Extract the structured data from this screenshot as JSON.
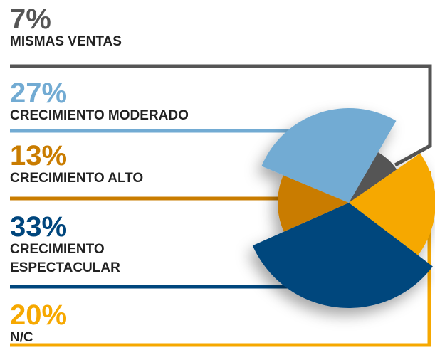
{
  "chart_data": {
    "type": "pie",
    "categories": [
      "MISMAS VENTAS",
      "CRECIMIENTO MODERADO",
      "CRECIMIENTO ALTO",
      "CRECIMIENTO ESPECTACULAR",
      "N/C"
    ],
    "values": [
      7,
      27,
      13,
      33,
      20
    ],
    "value_labels": [
      "7%",
      "27%",
      "13%",
      "33%",
      "20%"
    ],
    "colors": [
      "#555555",
      "#72abd3",
      "#c97c00",
      "#00467d",
      "#f6a800"
    ]
  }
}
